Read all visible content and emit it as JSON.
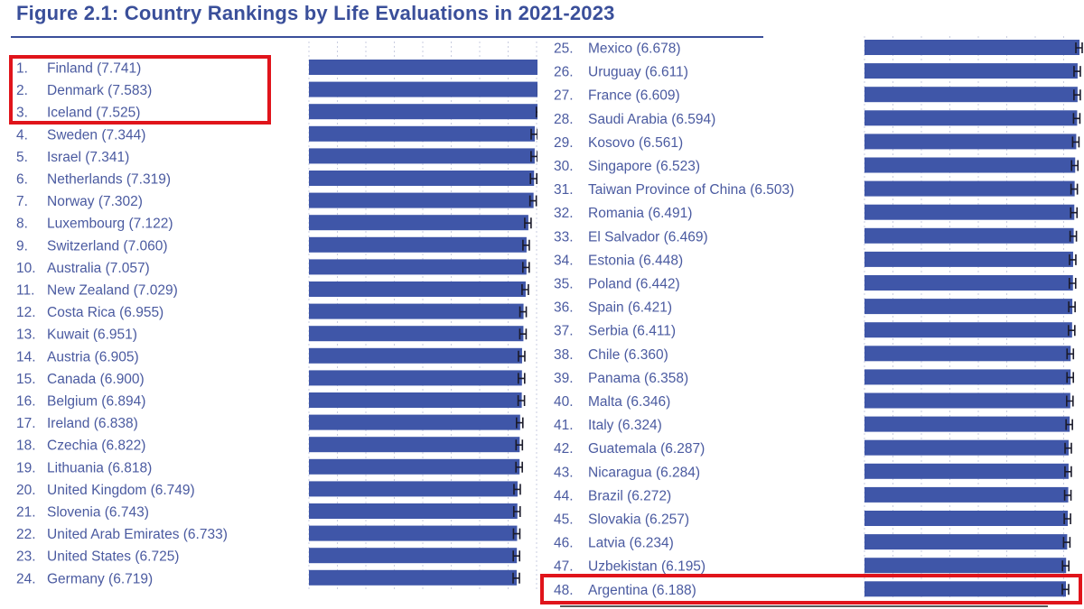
{
  "chart_data": {
    "type": "bar",
    "orientation": "horizontal",
    "title": "Figure 2.1: Country Rankings by Life Evaluations in 2021-2023",
    "bar_color": "#3f56a8",
    "highlight_color": "#e0141b",
    "panels": [
      {
        "entries": [
          {
            "rank": "1.",
            "country": "Finland",
            "value": 7.741
          },
          {
            "rank": "2.",
            "country": "Denmark",
            "value": 7.583
          },
          {
            "rank": "3.",
            "country": "Iceland",
            "value": 7.525
          },
          {
            "rank": "4.",
            "country": "Sweden",
            "value": 7.344
          },
          {
            "rank": "5.",
            "country": "Israel",
            "value": 7.341
          },
          {
            "rank": "6.",
            "country": "Netherlands",
            "value": 7.319
          },
          {
            "rank": "7.",
            "country": "Norway",
            "value": 7.302
          },
          {
            "rank": "8.",
            "country": "Luxembourg",
            "value": 7.122
          },
          {
            "rank": "9.",
            "country": "Switzerland",
            "value": 7.06
          },
          {
            "rank": "10.",
            "country": "Australia",
            "value": 7.057
          },
          {
            "rank": "11.",
            "country": "New Zealand",
            "value": 7.029
          },
          {
            "rank": "12.",
            "country": "Costa Rica",
            "value": 6.955
          },
          {
            "rank": "13.",
            "country": "Kuwait",
            "value": 6.951
          },
          {
            "rank": "14.",
            "country": "Austria",
            "value": 6.905
          },
          {
            "rank": "15.",
            "country": "Canada",
            "value": 6.9
          },
          {
            "rank": "16.",
            "country": "Belgium",
            "value": 6.894
          },
          {
            "rank": "17.",
            "country": "Ireland",
            "value": 6.838
          },
          {
            "rank": "18.",
            "country": "Czechia",
            "value": 6.822
          },
          {
            "rank": "19.",
            "country": "Lithuania",
            "value": 6.818
          },
          {
            "rank": "20.",
            "country": "United Kingdom",
            "value": 6.749
          },
          {
            "rank": "21.",
            "country": "Slovenia",
            "value": 6.743
          },
          {
            "rank": "22.",
            "country": "United Arab Emirates",
            "value": 6.733
          },
          {
            "rank": "23.",
            "country": "United States",
            "value": 6.725
          },
          {
            "rank": "24.",
            "country": "Germany",
            "value": 6.719
          }
        ],
        "highlighted": [
          "Finland",
          "Denmark",
          "Iceland"
        ]
      },
      {
        "entries": [
          {
            "rank": "25.",
            "country": "Mexico",
            "value": 6.678
          },
          {
            "rank": "26.",
            "country": "Uruguay",
            "value": 6.611
          },
          {
            "rank": "27.",
            "country": "France",
            "value": 6.609
          },
          {
            "rank": "28.",
            "country": "Saudi Arabia",
            "value": 6.594
          },
          {
            "rank": "29.",
            "country": "Kosovo",
            "value": 6.561
          },
          {
            "rank": "30.",
            "country": "Singapore",
            "value": 6.523
          },
          {
            "rank": "31.",
            "country": "Taiwan Province of China",
            "value": 6.503
          },
          {
            "rank": "32.",
            "country": "Romania",
            "value": 6.491
          },
          {
            "rank": "33.",
            "country": "El Salvador",
            "value": 6.469
          },
          {
            "rank": "34.",
            "country": "Estonia",
            "value": 6.448
          },
          {
            "rank": "35.",
            "country": "Poland",
            "value": 6.442
          },
          {
            "rank": "36.",
            "country": "Spain",
            "value": 6.421
          },
          {
            "rank": "37.",
            "country": "Serbia",
            "value": 6.411
          },
          {
            "rank": "38.",
            "country": "Chile",
            "value": 6.36
          },
          {
            "rank": "39.",
            "country": "Panama",
            "value": 6.358
          },
          {
            "rank": "40.",
            "country": "Malta",
            "value": 6.346
          },
          {
            "rank": "41.",
            "country": "Italy",
            "value": 6.324
          },
          {
            "rank": "42.",
            "country": "Guatemala",
            "value": 6.287
          },
          {
            "rank": "43.",
            "country": "Nicaragua",
            "value": 6.284
          },
          {
            "rank": "44.",
            "country": "Brazil",
            "value": 6.272
          },
          {
            "rank": "45.",
            "country": "Slovakia",
            "value": 6.257
          },
          {
            "rank": "46.",
            "country": "Latvia",
            "value": 6.234
          },
          {
            "rank": "47.",
            "country": "Uzbekistan",
            "value": 6.195
          },
          {
            "rank": "48.",
            "country": "Argentina",
            "value": 6.188
          }
        ],
        "highlighted": [
          "Argentina"
        ]
      }
    ]
  }
}
